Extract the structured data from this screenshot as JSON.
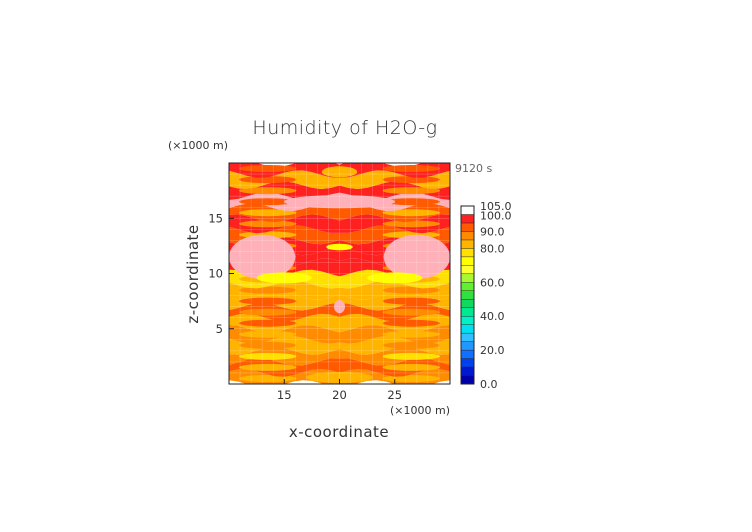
{
  "chart_data": {
    "type": "heatmap",
    "title": "Humidity of H2O-g",
    "xlabel": "x-coordinate",
    "ylabel": "z-coordinate",
    "x_unit": "(×1000 m)",
    "y_unit": "(×1000 m)",
    "time_label": "9120 s",
    "xlim": [
      10,
      30
    ],
    "ylim": [
      0,
      20
    ],
    "x_ticks": [
      "15",
      "20",
      "25"
    ],
    "x_tick_values": [
      15,
      20,
      25
    ],
    "y_ticks": [
      "5",
      "10",
      "15"
    ],
    "y_tick_values": [
      5,
      10,
      15
    ],
    "grid": true,
    "colorbar": {
      "levels": [
        0,
        5,
        10,
        15,
        20,
        25,
        30,
        35,
        40,
        45,
        50,
        55,
        60,
        65,
        70,
        75,
        80,
        85,
        90,
        95,
        100,
        105
      ],
      "colors": [
        "#0000a8",
        "#0018d0",
        "#0040f0",
        "#1070ff",
        "#2098ff",
        "#30c0ff",
        "#00e0f0",
        "#00f0c8",
        "#00e890",
        "#10d860",
        "#30e040",
        "#60f030",
        "#a8f830",
        "#ffff30",
        "#ffff00",
        "#ffe000",
        "#ffb400",
        "#ff8c00",
        "#ff5a00",
        "#ff2020",
        "#ffb0b8"
      ],
      "top_color": "#ffffff",
      "labels": [
        "0.0",
        "20.0",
        "40.0",
        "60.0",
        "80.0",
        "90.0",
        "100.0",
        "105.0"
      ],
      "label_values": [
        0,
        20,
        40,
        60,
        80,
        90,
        100,
        105
      ]
    },
    "bands": [
      {
        "z": [
          0,
          1
        ],
        "base": 86
      },
      {
        "z": [
          1,
          2
        ],
        "base": 90
      },
      {
        "z": [
          2,
          3
        ],
        "base": 85
      },
      {
        "z": [
          3,
          4
        ],
        "base": 80
      },
      {
        "z": [
          4,
          5
        ],
        "base": 89
      },
      {
        "z": [
          5,
          6
        ],
        "base": 82
      },
      {
        "z": [
          6,
          7
        ],
        "base": 92
      },
      {
        "z": [
          7,
          8
        ],
        "base": 82
      },
      {
        "z": [
          8,
          9
        ],
        "base": 80
      },
      {
        "z": [
          9,
          10
        ],
        "base": 76
      },
      {
        "z": [
          10,
          11
        ],
        "base": 95
      },
      {
        "z": [
          11,
          12
        ],
        "base": 98
      },
      {
        "z": [
          12,
          13
        ],
        "base": 97
      },
      {
        "z": [
          13,
          14
        ],
        "base": 90
      },
      {
        "z": [
          14,
          15
        ],
        "base": 96
      },
      {
        "z": [
          15,
          16
        ],
        "base": 90
      },
      {
        "z": [
          16,
          17
        ],
        "base": 101
      },
      {
        "z": [
          17,
          18
        ],
        "base": 95
      },
      {
        "z": [
          18,
          19
        ],
        "base": 82
      },
      {
        "z": [
          19,
          20
        ],
        "base": 98
      }
    ],
    "features": [
      {
        "shape": "blob",
        "x": 13,
        "z": 11.5,
        "rx": 3,
        "rz": 2,
        "value": 101
      },
      {
        "shape": "blob",
        "x": 27,
        "z": 11.5,
        "rx": 3,
        "rz": 2,
        "value": 101
      },
      {
        "shape": "blob",
        "x": 15,
        "z": 9.6,
        "rx": 2.5,
        "rz": 0.5,
        "value": 70
      },
      {
        "shape": "blob",
        "x": 25,
        "z": 9.6,
        "rx": 2.5,
        "rz": 0.5,
        "value": 70
      },
      {
        "shape": "blob",
        "x": 20,
        "z": 12.4,
        "rx": 1.2,
        "rz": 0.3,
        "value": 70
      },
      {
        "shape": "blob",
        "x": 20,
        "z": 7,
        "rx": 0.5,
        "rz": 0.6,
        "value": 101
      },
      {
        "shape": "blob",
        "x": 20,
        "z": 19.2,
        "rx": 1.6,
        "rz": 0.5,
        "value": 82
      },
      {
        "shape": "blob",
        "x": 20,
        "z": 16.5,
        "rx": 5,
        "rz": 0.6,
        "value": 101
      },
      {
        "shape": "blob",
        "x": 20,
        "z": 0.6,
        "rx": 3,
        "rz": 0.5,
        "value": 80
      }
    ]
  }
}
